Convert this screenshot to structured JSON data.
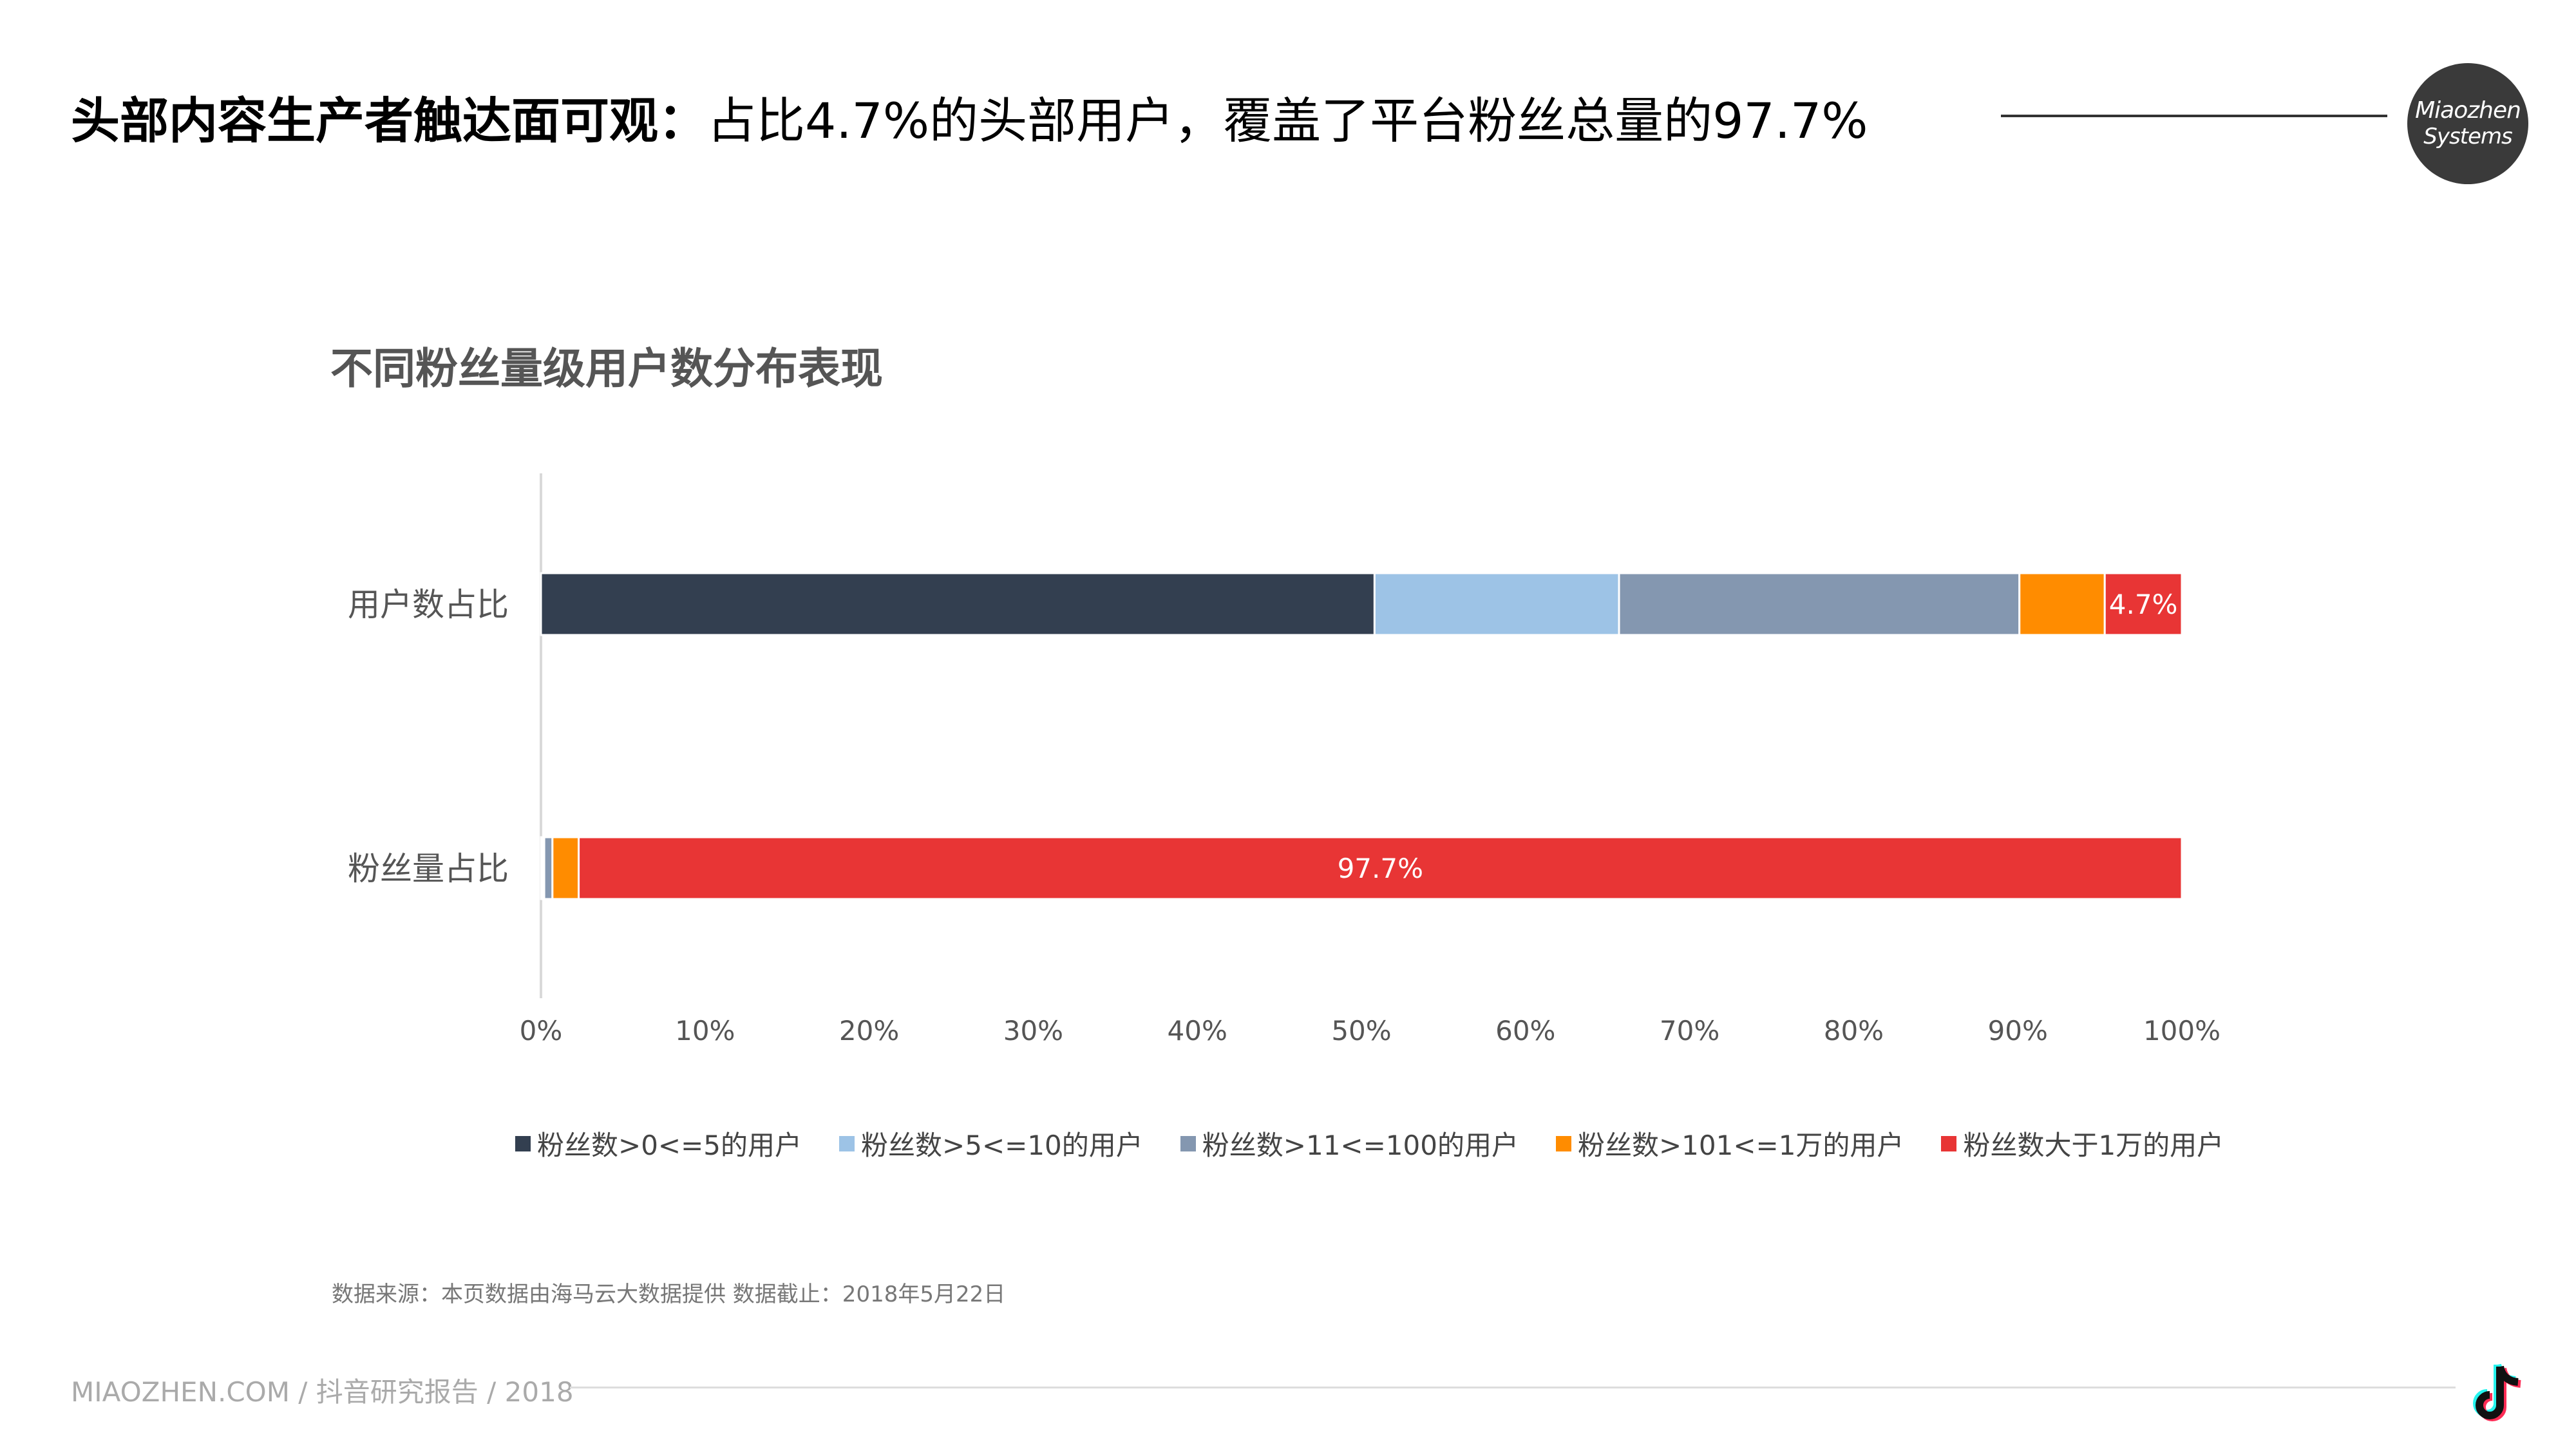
{
  "header": {
    "title_bold": "头部内容生产者触达面可观：",
    "title_rest": "占比4.7%的头部用户，覆盖了平台粉丝总量的97.7%",
    "logo_line1": "Miaozhen",
    "logo_line2": "Systems"
  },
  "chart_title": "不同粉丝量级用户数分布表现",
  "source_note": "数据来源：本页数据由海马云大数据提供 数据截止：2018年5月22日",
  "footer": {
    "text": "MIAOZHEN.COM / 抖音研究报告 / 2018",
    "icon": "tiktok-icon"
  },
  "chart_data": {
    "type": "bar",
    "orientation": "horizontal",
    "stacked": "percent",
    "title": "不同粉丝量级用户数分布表现",
    "categories": [
      "用户数占比",
      "粉丝量占比"
    ],
    "xlim": [
      0,
      100
    ],
    "xticks": [
      "0%",
      "10%",
      "20%",
      "30%",
      "40%",
      "50%",
      "60%",
      "70%",
      "80%",
      "90%",
      "100%"
    ],
    "legend_position": "bottom",
    "grid": false,
    "series": [
      {
        "name": "粉丝数>0<=5的用户",
        "color": "#333f50",
        "values": [
          50.8,
          0.1
        ]
      },
      {
        "name": "粉丝数>5<=10的用户",
        "color": "#9dc3e6",
        "values": [
          14.9,
          0.1
        ]
      },
      {
        "name": "粉丝数>11<=100的用户",
        "color": "#8497b0",
        "values": [
          24.4,
          0.5
        ]
      },
      {
        "name": "粉丝数>101<=1万的用户",
        "color": "#ff8c00",
        "values": [
          5.2,
          1.6
        ]
      },
      {
        "name": "粉丝数大于1万的用户",
        "color": "#e83535",
        "values": [
          4.7,
          97.7
        ]
      }
    ],
    "data_labels": [
      {
        "series": 4,
        "category": 0,
        "text": "4.7%"
      },
      {
        "series": 4,
        "category": 1,
        "text": "97.7%"
      }
    ]
  }
}
